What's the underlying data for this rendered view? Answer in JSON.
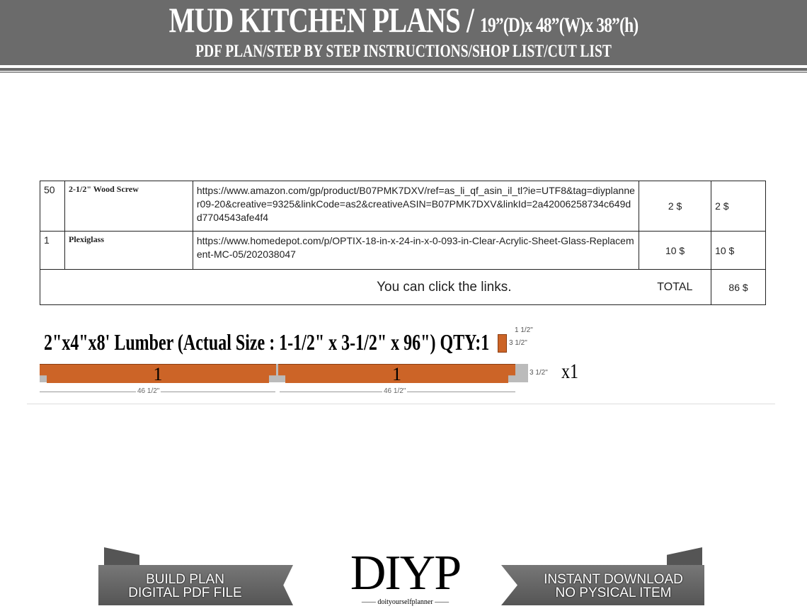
{
  "header": {
    "title": "MUD KITCHEN PLANS /",
    "dimensions": "19”(D)x 48”(W)x 38”(h)",
    "subtitle": "PDF PLAN/STEP BY STEP INSTRUCTIONS/SHOP LIST/CUT LIST"
  },
  "shop_list": {
    "rows": [
      {
        "qty": "50",
        "item": "2-1/2\" Wood Screw",
        "link": "https://www.amazon.com/gp/product/B07PMK7DXV/ref=as_li_qf_asin_il_tl?ie=UTF8&tag=diyplanner09-20&creative=9325&linkCode=as2&creativeASIN=B07PMK7DXV&linkId=2a42006258734c649dd7704543afe4f4",
        "unit_price": "2 $",
        "total": "2 $"
      },
      {
        "qty": "1",
        "item": "Plexiglass",
        "link": "https://www.homedepot.com/p/OPTIX-18-in-x-24-in-x-0-093-in-Clear-Acrylic-Sheet-Glass-Replacement-MC-05/202038047",
        "unit_price": "10 $",
        "total": "10 $"
      }
    ],
    "note": "You can click the links.",
    "total_label": "TOTAL",
    "total_value": "86 $"
  },
  "lumber": {
    "title": "2\"x4\"x8' Lumber (Actual Size : 1-1/2\" x 3-1/2\" x 96\") QTY:1",
    "section_width": "1 1/2\"",
    "section_height": "3 1/2\"",
    "pieces": [
      {
        "label": "1",
        "length": "46 1/2\""
      },
      {
        "label": "1",
        "length": "46 1/2\""
      }
    ],
    "board_height": "3 1/2\"",
    "multiplier": "x1",
    "wood_color": "#cc6427"
  },
  "footer": {
    "left_banner": [
      "BUILD PLAN",
      "DIGITAL PDF FILE"
    ],
    "logo": "DIYP",
    "logo_sub": "doityourselfplanner",
    "right_banner": [
      "INSTANT DOWNLOAD",
      "NO PYSICAL ITEM"
    ]
  }
}
